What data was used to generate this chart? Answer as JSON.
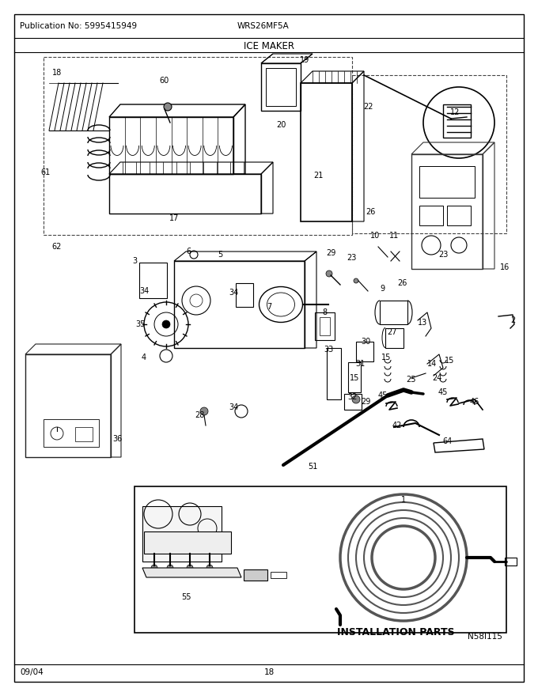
{
  "title": "ICE MAKER",
  "pub_no": "Publication No: 5995415949",
  "model": "WRS26MF5A",
  "date": "09/04",
  "page": "18",
  "diagram_code": "N58I115",
  "install_parts_label": "INSTALLATION PARTS",
  "bg_color": "#ffffff",
  "line_color": "#000000",
  "figsize": [
    6.8,
    8.8
  ],
  "dpi": 100
}
